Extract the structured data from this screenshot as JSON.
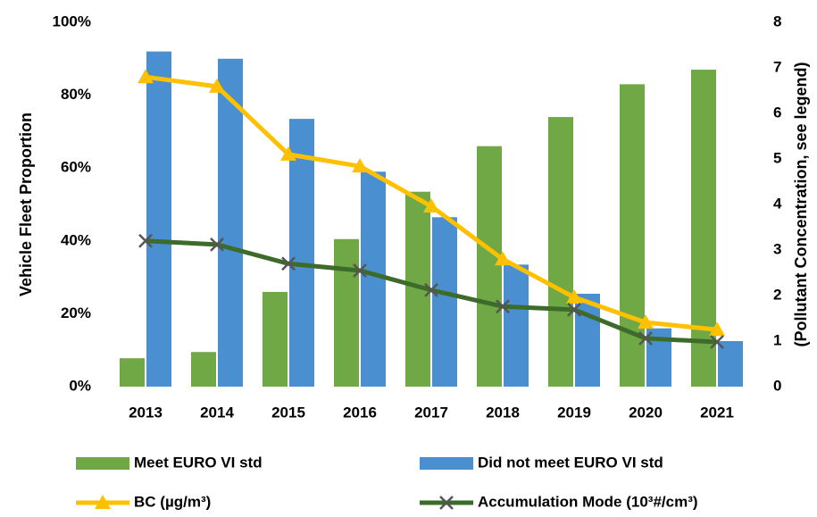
{
  "chart_data": {
    "type": "bar",
    "categories": [
      "2013",
      "2014",
      "2015",
      "2016",
      "2017",
      "2018",
      "2019",
      "2020",
      "2021"
    ],
    "series": [
      {
        "name": "Meet EURO VI std",
        "color": "#70a845",
        "values": [
          7.8,
          9.5,
          26,
          40.5,
          53.5,
          66,
          74,
          83,
          87
        ]
      },
      {
        "name": "Did not meet EURO VI std",
        "color": "#4a90d0",
        "values": [
          92,
          90,
          73.5,
          59,
          46.5,
          33.5,
          25.5,
          16,
          12.5
        ]
      },
      {
        "name": "BC (µg/m³)",
        "color": "#ffc000",
        "type": "line",
        "marker": "triangle",
        "axis": "y2",
        "values": [
          6.8,
          6.59,
          5.1,
          4.84,
          3.96,
          2.8,
          1.96,
          1.41,
          1.25
        ]
      },
      {
        "name": "Accumulation Mode (10³#/cm³)",
        "color": "#3d6b2a",
        "type": "line",
        "marker": "x",
        "axis": "y2",
        "values": [
          3.2,
          3.12,
          2.7,
          2.55,
          2.12,
          1.76,
          1.69,
          1.06,
          0.98
        ]
      }
    ],
    "ylabel": "Vehicle Fleet Proportion",
    "y2label": "(Pollutant Concentration, see legend)",
    "ylim": [
      0,
      100
    ],
    "yticks": [
      {
        "value": 0,
        "label": "0%"
      },
      {
        "value": 20,
        "label": "20%"
      },
      {
        "value": 40,
        "label": "40%"
      },
      {
        "value": 60,
        "label": "60%"
      },
      {
        "value": 80,
        "label": "80%"
      },
      {
        "value": 100,
        "label": "100%"
      }
    ],
    "y2lim": [
      0,
      8
    ],
    "y2ticks": [
      0,
      1,
      2,
      3,
      4,
      5,
      6,
      7,
      8
    ],
    "grid": false,
    "legend": "bottom"
  }
}
